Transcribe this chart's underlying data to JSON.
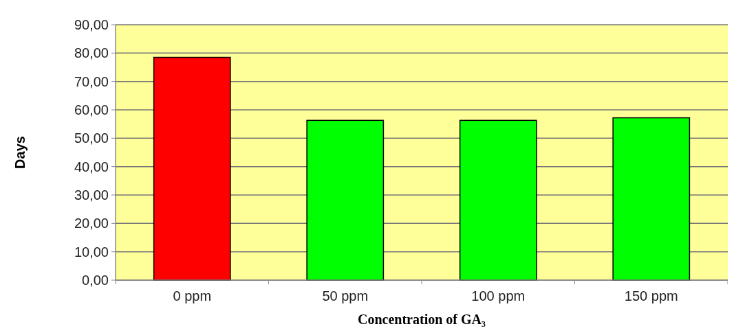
{
  "chart_data": {
    "type": "bar",
    "xlabel": "Concentration of GA₃",
    "ylabel": "Days",
    "categories": [
      "0 ppm",
      "50 ppm",
      "100 ppm",
      "150 ppm"
    ],
    "values": [
      78.5,
      56.3,
      56.3,
      57.2
    ],
    "colors": [
      "#ff0000",
      "#00ff00",
      "#00ff00",
      "#00ff00"
    ],
    "ylim": [
      0,
      90
    ],
    "yticks": [
      {
        "value": 0,
        "label": "0,00"
      },
      {
        "value": 10,
        "label": "10,00"
      },
      {
        "value": 20,
        "label": "20,00"
      },
      {
        "value": 30,
        "label": "30,00"
      },
      {
        "value": 40,
        "label": "40,00"
      },
      {
        "value": 50,
        "label": "50,00"
      },
      {
        "value": 60,
        "label": "60,00"
      },
      {
        "value": 70,
        "label": "70,00"
      },
      {
        "value": 80,
        "label": "80,00"
      },
      {
        "value": 90,
        "label": "90,00"
      }
    ],
    "grid": "y"
  }
}
